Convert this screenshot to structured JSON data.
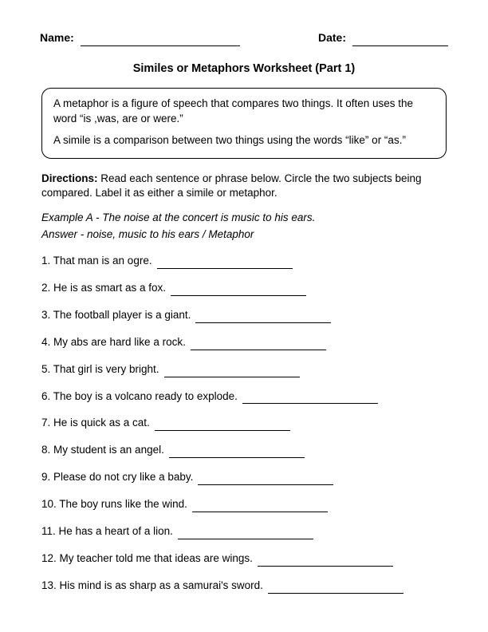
{
  "header": {
    "name_label": "Name:",
    "date_label": "Date:"
  },
  "title": "Similes or Metaphors Worksheet (Part 1)",
  "info_box": {
    "p1": "A metaphor is a figure of speech that compares two things. It often uses the word “is ,was, are or were.”",
    "p2": "A simile is a comparison between two things using the words “like” or “as.”"
  },
  "directions": {
    "label": "Directions:",
    "text": " Read each sentence or phrase below. Circle the two subjects being compared. Label it as either a simile or metaphor."
  },
  "example": "Example A - The noise at the concert is music to his ears.",
  "answer": "Answer - noise, music to his ears / Metaphor",
  "questions": [
    "1. That man is an ogre.",
    "2. He is as smart as a fox.",
    "3. The football player is a giant.",
    "4. My abs are hard like a rock.",
    "5. That girl is very bright.",
    "6. The boy is a volcano ready to explode.",
    "7. He is quick as a cat.",
    "8. My student is an angel.",
    "9. Please do not cry like a baby.",
    "10. The boy runs like the wind.",
    "11. He has a heart of a lion.",
    "12. My teacher told me that ideas are wings.",
    "13. His mind is as sharp as a samurai's sword."
  ]
}
